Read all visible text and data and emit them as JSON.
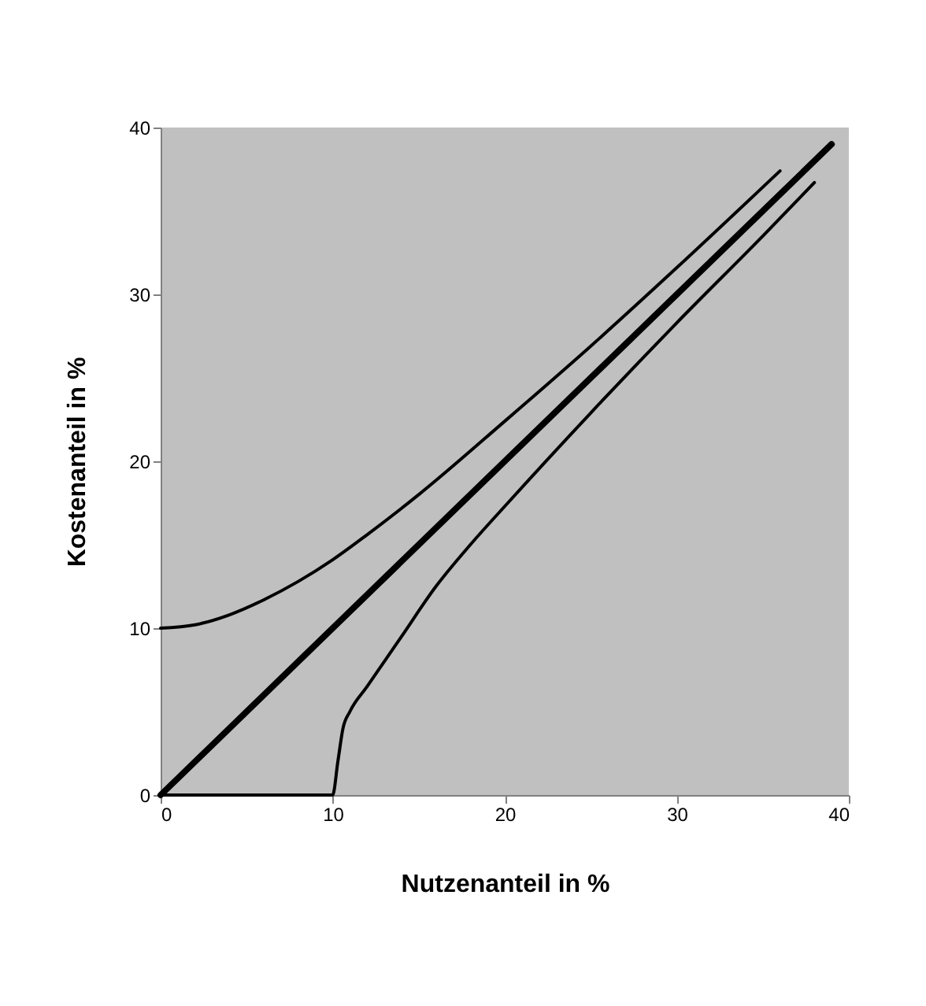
{
  "chart_data": {
    "type": "line",
    "xlabel": "Nutzenanteil in %",
    "ylabel": "Kostenanteil in %",
    "xlim": [
      0,
      40
    ],
    "ylim": [
      0,
      40
    ],
    "xticks": [
      0,
      10,
      20,
      30,
      40
    ],
    "yticks": [
      0,
      10,
      20,
      30,
      40
    ],
    "grid": false,
    "marker": "none",
    "line_style": "solid",
    "series": [
      {
        "color": "#000000",
        "x": [
          0,
          39
        ],
        "values": [
          0,
          39
        ]
      },
      {
        "color": "#000000",
        "x": [
          0,
          2,
          4,
          6,
          8,
          10,
          12,
          15,
          20,
          25,
          30,
          36
        ],
        "values": [
          10,
          10.2,
          10.8,
          11.7,
          12.8,
          14.1,
          15.6,
          18,
          22.4,
          26.9,
          31.6,
          37.4
        ]
      },
      {
        "color": "#000000",
        "x": [
          0,
          9,
          10,
          10.3,
          10.6,
          11,
          12,
          14,
          16,
          18,
          20,
          25,
          30,
          35,
          38
        ],
        "values": [
          0,
          0,
          0,
          2,
          4,
          5,
          6.5,
          9.5,
          12.5,
          15,
          17.3,
          22.9,
          28.3,
          33.5,
          36.7
        ]
      }
    ]
  }
}
